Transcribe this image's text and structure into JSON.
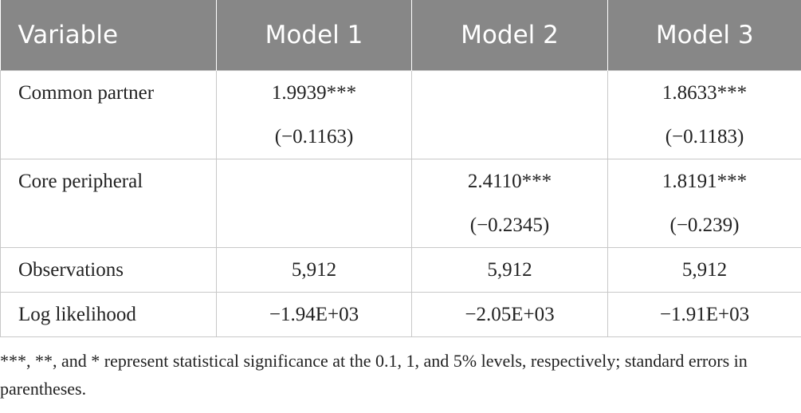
{
  "table": {
    "header": [
      "Variable",
      "Model 1",
      "Model 2",
      "Model 3"
    ],
    "rows": [
      {
        "label": "Common partner",
        "cells": [
          [
            "1.9939***",
            "(−0.1163)"
          ],
          [],
          [
            "1.8633***",
            "(−0.1183)"
          ]
        ]
      },
      {
        "label": "Core peripheral",
        "cells": [
          [],
          [
            "2.4110***",
            "(−0.2345)"
          ],
          [
            "1.8191***",
            "(−0.239)"
          ]
        ]
      },
      {
        "label": "Observations",
        "cells": [
          [
            "5,912"
          ],
          [
            "5,912"
          ],
          [
            "5,912"
          ]
        ]
      },
      {
        "label": "Log likelihood",
        "cells": [
          [
            "−1.94E+03"
          ],
          [
            "−2.05E+03"
          ],
          [
            "−1.91E+03"
          ]
        ]
      }
    ],
    "footnote": "***, **, and * represent statistical significance at the 0.1, 1, and 5% levels, respectively; standard errors in parentheses."
  }
}
